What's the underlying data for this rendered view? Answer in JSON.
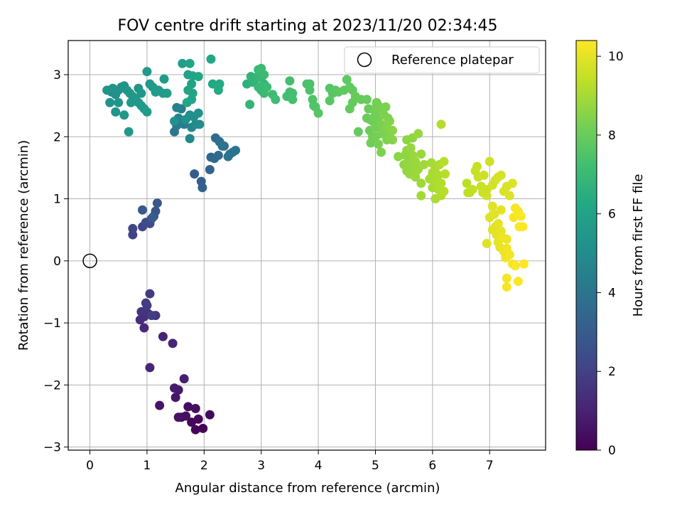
{
  "chart_data": {
    "type": "scatter",
    "title": "FOV centre drift starting at 2023/11/20 02:34:45",
    "xlabel": "Angular distance from reference (arcmin)",
    "ylabel": "Rotation from reference (arcmin)",
    "xlim": [
      -0.38,
      7.98
    ],
    "ylim": [
      -3.05,
      3.55
    ],
    "xticks": [
      0,
      1,
      2,
      3,
      4,
      5,
      6,
      7
    ],
    "yticks": [
      -3,
      -2,
      -1,
      0,
      1,
      2,
      3
    ],
    "grid": true,
    "legend": {
      "placement": "top-right",
      "entries": [
        "Reference platepar"
      ]
    },
    "reference_point": {
      "x": 0,
      "y": 0
    },
    "colorbar": {
      "label": "Hours from first FF file",
      "range": [
        0,
        10.4
      ],
      "ticks": [
        0,
        2,
        4,
        6,
        8,
        10
      ],
      "colormap": "viridis"
    },
    "points": [
      [
        1.85,
        -2.72,
        0.05
      ],
      [
        1.98,
        -2.7,
        0.1
      ],
      [
        1.78,
        -2.6,
        0.15
      ],
      [
        1.9,
        -2.55,
        0.2
      ],
      [
        2.1,
        -2.48,
        0.25
      ],
      [
        1.6,
        -2.52,
        0.3
      ],
      [
        1.72,
        -2.35,
        0.35
      ],
      [
        1.85,
        -2.38,
        0.4
      ],
      [
        1.68,
        -2.5,
        0.45
      ],
      [
        1.55,
        -2.52,
        0.5
      ],
      [
        1.22,
        -2.33,
        0.55
      ],
      [
        1.5,
        -2.2,
        0.6
      ],
      [
        1.55,
        -2.08,
        0.7
      ],
      [
        1.48,
        -2.05,
        0.8
      ],
      [
        1.65,
        -1.9,
        0.9
      ],
      [
        1.28,
        -1.22,
        1.0
      ],
      [
        1.45,
        -1.33,
        1.05
      ],
      [
        1.05,
        -1.72,
        1.1
      ],
      [
        0.95,
        -1.08,
        1.2
      ],
      [
        0.88,
        -0.95,
        1.3
      ],
      [
        0.95,
        -0.9,
        1.4
      ],
      [
        1.02,
        -0.85,
        1.5
      ],
      [
        1.15,
        -0.88,
        1.55
      ],
      [
        0.9,
        -0.82,
        1.6
      ],
      [
        1.0,
        -0.72,
        1.7
      ],
      [
        1.05,
        -0.53,
        1.8
      ],
      [
        0.98,
        -0.68,
        1.85
      ],
      [
        1.08,
        -0.88,
        1.9
      ],
      [
        0.75,
        0.42,
        2.0
      ],
      [
        0.75,
        0.52,
        2.1
      ],
      [
        0.92,
        0.55,
        2.2
      ],
      [
        0.98,
        0.62,
        2.3
      ],
      [
        1.05,
        0.6,
        2.4
      ],
      [
        1.08,
        0.68,
        2.5
      ],
      [
        1.12,
        0.72,
        2.6
      ],
      [
        1.15,
        0.8,
        2.7
      ],
      [
        1.18,
        0.93,
        2.8
      ],
      [
        0.92,
        0.82,
        2.9
      ],
      [
        1.1,
        0.7,
        3.0
      ],
      [
        1.83,
        1.4,
        3.0
      ],
      [
        1.95,
        1.28,
        3.1
      ],
      [
        1.97,
        1.18,
        3.2
      ],
      [
        2.1,
        1.47,
        3.3
      ],
      [
        2.12,
        1.67,
        3.4
      ],
      [
        2.18,
        1.65,
        3.5
      ],
      [
        2.25,
        1.7,
        3.6
      ],
      [
        2.35,
        1.85,
        3.7
      ],
      [
        2.45,
        1.72,
        3.8
      ],
      [
        2.5,
        1.75,
        3.9
      ],
      [
        2.55,
        1.78,
        4.0
      ],
      [
        2.2,
        1.98,
        3.7
      ],
      [
        2.27,
        1.92,
        3.8
      ],
      [
        2.32,
        1.85,
        3.9
      ],
      [
        2.42,
        1.68,
        4.0
      ],
      [
        1.48,
        2.08,
        4.1
      ],
      [
        1.52,
        2.18,
        4.2
      ],
      [
        1.6,
        2.45,
        4.3
      ],
      [
        1.65,
        2.2,
        4.4
      ],
      [
        1.55,
        2.3,
        4.5
      ],
      [
        1.52,
        2.47,
        4.6
      ],
      [
        1.78,
        2.15,
        4.7
      ],
      [
        1.75,
        1.97,
        4.8
      ],
      [
        1.85,
        2.2,
        4.9
      ],
      [
        1.82,
        2.32,
        5.0
      ],
      [
        1.92,
        2.2,
        5.0
      ],
      [
        1.75,
        2.35,
        5.1
      ],
      [
        1.68,
        2.28,
        5.2
      ],
      [
        1.9,
        2.38,
        5.2
      ],
      [
        1.48,
        2.25,
        5.2
      ],
      [
        0.38,
        2.72,
        5.0
      ],
      [
        0.45,
        2.68,
        5.1
      ],
      [
        0.5,
        2.75,
        5.2
      ],
      [
        0.55,
        2.8,
        5.3
      ],
      [
        0.6,
        2.82,
        5.35
      ],
      [
        0.65,
        2.75,
        5.4
      ],
      [
        0.7,
        2.7,
        5.45
      ],
      [
        0.75,
        2.65,
        5.5
      ],
      [
        0.8,
        2.6,
        5.55
      ],
      [
        0.85,
        2.55,
        5.6
      ],
      [
        0.9,
        2.5,
        5.6
      ],
      [
        0.95,
        2.45,
        5.65
      ],
      [
        1.0,
        2.4,
        5.7
      ],
      [
        0.85,
        2.78,
        5.4
      ],
      [
        0.9,
        2.7,
        5.45
      ],
      [
        1.05,
        2.85,
        5.5
      ],
      [
        1.1,
        2.8,
        5.55
      ],
      [
        1.2,
        2.75,
        5.6
      ],
      [
        1.28,
        2.7,
        5.65
      ],
      [
        1.15,
        2.72,
        5.7
      ],
      [
        0.35,
        2.55,
        5.3
      ],
      [
        0.5,
        2.55,
        5.35
      ],
      [
        0.45,
        2.4,
        5.4
      ],
      [
        0.6,
        2.35,
        5.45
      ],
      [
        0.68,
        2.08,
        5.5
      ],
      [
        0.72,
        2.55,
        5.5
      ],
      [
        0.78,
        2.62,
        5.55
      ],
      [
        1.0,
        3.05,
        5.6
      ],
      [
        1.3,
        2.93,
        5.7
      ],
      [
        1.35,
        2.7,
        5.75
      ],
      [
        0.3,
        2.75,
        5.3
      ],
      [
        0.4,
        2.78,
        5.3
      ],
      [
        1.62,
        3.18,
        5.9
      ],
      [
        1.72,
        3.0,
        5.95
      ],
      [
        1.8,
        2.98,
        6.0
      ],
      [
        1.78,
        2.85,
        6.0
      ],
      [
        1.72,
        2.75,
        6.05
      ],
      [
        1.8,
        2.7,
        6.1
      ],
      [
        1.78,
        2.6,
        6.1
      ],
      [
        1.7,
        2.55,
        6.15
      ],
      [
        1.9,
        2.97,
        6.2
      ],
      [
        2.12,
        3.25,
        6.2
      ],
      [
        2.15,
        2.85,
        6.25
      ],
      [
        2.25,
        2.82,
        6.3
      ],
      [
        2.27,
        2.85,
        6.35
      ],
      [
        2.25,
        2.75,
        6.35
      ],
      [
        1.75,
        3.18,
        6.1
      ],
      [
        2.75,
        2.85,
        6.6
      ],
      [
        2.82,
        2.97,
        6.7
      ],
      [
        2.85,
        2.88,
        6.75
      ],
      [
        2.9,
        2.93,
        6.8
      ],
      [
        2.95,
        2.98,
        6.85
      ],
      [
        3.0,
        2.95,
        6.9
      ],
      [
        3.05,
        2.85,
        6.9
      ],
      [
        3.0,
        2.75,
        6.95
      ],
      [
        2.95,
        3.08,
        7.0
      ],
      [
        3.0,
        3.1,
        7.05
      ],
      [
        3.05,
        3.0,
        7.05
      ],
      [
        3.1,
        2.8,
        7.1
      ],
      [
        3.2,
        2.68,
        7.1
      ],
      [
        3.25,
        2.6,
        7.15
      ],
      [
        2.95,
        2.8,
        6.95
      ],
      [
        2.8,
        2.52,
        6.8
      ],
      [
        3.05,
        2.7,
        7.0
      ],
      [
        3.45,
        2.65,
        7.2
      ],
      [
        3.5,
        2.72,
        7.25
      ],
      [
        3.55,
        2.7,
        7.3
      ],
      [
        3.55,
        2.6,
        7.3
      ],
      [
        3.5,
        2.9,
        7.25
      ],
      [
        3.8,
        2.85,
        7.4
      ],
      [
        3.85,
        2.75,
        7.45
      ],
      [
        3.9,
        2.6,
        7.5
      ],
      [
        3.92,
        2.5,
        7.5
      ],
      [
        3.95,
        2.48,
        7.55
      ],
      [
        4.0,
        2.38,
        7.6
      ],
      [
        3.85,
        2.85,
        7.4
      ],
      [
        4.2,
        2.78,
        7.6
      ],
      [
        4.25,
        2.7,
        7.65
      ],
      [
        4.3,
        2.75,
        7.7
      ],
      [
        4.2,
        2.58,
        7.7
      ],
      [
        4.35,
        2.72,
        7.75
      ],
      [
        4.45,
        2.75,
        7.8
      ],
      [
        4.5,
        2.92,
        7.8
      ],
      [
        4.55,
        2.8,
        7.85
      ],
      [
        4.6,
        2.75,
        7.85
      ],
      [
        4.55,
        2.45,
        7.9
      ],
      [
        4.6,
        2.55,
        7.9
      ],
      [
        4.65,
        2.65,
        7.95
      ],
      [
        4.75,
        2.6,
        7.95
      ],
      [
        4.85,
        2.6,
        8.0
      ],
      [
        4.7,
        2.08,
        7.9
      ],
      [
        4.85,
        2.3,
        8.0
      ],
      [
        4.88,
        2.45,
        8.05
      ],
      [
        4.9,
        2.1,
        8.05
      ],
      [
        4.92,
        1.9,
        8.1
      ],
      [
        4.95,
        2.25,
        8.1
      ],
      [
        4.95,
        2.0,
        8.15
      ],
      [
        5.0,
        2.15,
        8.15
      ],
      [
        5.0,
        2.4,
        8.2
      ],
      [
        5.02,
        2.55,
        8.2
      ],
      [
        5.05,
        2.5,
        8.25
      ],
      [
        5.05,
        2.3,
        8.25
      ],
      [
        5.1,
        2.05,
        8.3
      ],
      [
        5.1,
        2.2,
        8.3
      ],
      [
        5.15,
        2.35,
        8.35
      ],
      [
        5.15,
        2.1,
        8.35
      ],
      [
        5.1,
        1.75,
        8.4
      ],
      [
        5.2,
        1.95,
        8.4
      ],
      [
        5.2,
        2.15,
        8.45
      ],
      [
        5.25,
        2.0,
        8.45
      ],
      [
        5.25,
        2.25,
        8.5
      ],
      [
        5.3,
        1.95,
        8.5
      ],
      [
        5.3,
        2.1,
        8.55
      ],
      [
        5.0,
        2.0,
        8.2
      ],
      [
        4.9,
        2.28,
        8.05
      ],
      [
        5.12,
        2.45,
        8.3
      ],
      [
        5.18,
        2.48,
        8.35
      ],
      [
        5.22,
        2.3,
        8.4
      ],
      [
        5.05,
        1.88,
        8.25
      ],
      [
        5.02,
        2.52,
        8.2
      ],
      [
        4.98,
        2.32,
        8.15
      ],
      [
        5.4,
        1.68,
        8.6
      ],
      [
        5.5,
        1.55,
        8.65
      ],
      [
        5.55,
        1.78,
        8.7
      ],
      [
        5.55,
        1.45,
        8.7
      ],
      [
        5.6,
        1.62,
        8.75
      ],
      [
        5.6,
        1.4,
        8.75
      ],
      [
        5.65,
        1.7,
        8.8
      ],
      [
        5.65,
        1.5,
        8.8
      ],
      [
        5.7,
        1.35,
        8.85
      ],
      [
        5.7,
        1.6,
        8.85
      ],
      [
        5.75,
        1.48,
        8.9
      ],
      [
        5.8,
        1.25,
        8.9
      ],
      [
        5.55,
        1.95,
        8.6
      ],
      [
        5.65,
        1.98,
        8.65
      ],
      [
        5.8,
        1.05,
        8.95
      ],
      [
        5.52,
        1.7,
        8.65
      ],
      [
        5.58,
        1.55,
        8.7
      ],
      [
        5.62,
        1.82,
        8.75
      ],
      [
        5.68,
        1.58,
        8.8
      ],
      [
        5.72,
        1.45,
        8.85
      ],
      [
        5.85,
        1.55,
        8.9
      ],
      [
        5.75,
        2.05,
        8.75
      ],
      [
        5.8,
        1.72,
        8.8
      ],
      [
        5.95,
        1.32,
        9.0
      ],
      [
        6.0,
        1.18,
        9.0
      ],
      [
        6.0,
        1.42,
        9.05
      ],
      [
        6.05,
        1.5,
        9.05
      ],
      [
        6.05,
        1.28,
        9.1
      ],
      [
        6.1,
        1.38,
        9.1
      ],
      [
        6.1,
        1.15,
        9.15
      ],
      [
        6.12,
        1.55,
        9.15
      ],
      [
        6.15,
        1.25,
        9.2
      ],
      [
        6.15,
        1.05,
        9.2
      ],
      [
        6.2,
        1.6,
        9.25
      ],
      [
        6.2,
        1.12,
        9.25
      ],
      [
        6.22,
        1.4,
        9.3
      ],
      [
        5.98,
        1.58,
        9.0
      ],
      [
        6.05,
        1.0,
        9.1
      ],
      [
        6.15,
        2.2,
        9.2
      ],
      [
        6.6,
        1.25,
        9.35
      ],
      [
        6.65,
        1.1,
        9.4
      ],
      [
        6.7,
        1.15,
        9.45
      ],
      [
        6.75,
        1.45,
        9.5
      ],
      [
        6.78,
        1.52,
        9.5
      ],
      [
        6.8,
        1.35,
        9.55
      ],
      [
        6.85,
        1.2,
        9.55
      ],
      [
        6.88,
        1.1,
        9.6
      ],
      [
        6.9,
        1.38,
        9.6
      ],
      [
        6.95,
        1.05,
        9.65
      ],
      [
        7.0,
        1.6,
        9.65
      ],
      [
        7.05,
        1.22,
        9.7
      ],
      [
        7.1,
        1.3,
        9.7
      ],
      [
        7.15,
        1.35,
        9.75
      ],
      [
        7.2,
        1.38,
        9.75
      ],
      [
        7.25,
        1.12,
        9.8
      ],
      [
        7.3,
        1.2,
        9.8
      ],
      [
        7.35,
        1.05,
        9.85
      ],
      [
        7.4,
        1.25,
        9.85
      ],
      [
        6.95,
        1.15,
        9.6
      ],
      [
        6.62,
        1.1,
        9.4
      ],
      [
        7.0,
        0.7,
        9.9
      ],
      [
        7.05,
        0.88,
        9.9
      ],
      [
        7.08,
        0.75,
        9.95
      ],
      [
        7.1,
        0.55,
        9.95
      ],
      [
        7.12,
        0.42,
        10.0
      ],
      [
        7.15,
        0.3,
        10.0
      ],
      [
        7.18,
        0.22,
        10.05
      ],
      [
        7.2,
        0.48,
        10.05
      ],
      [
        7.22,
        0.38,
        10.1
      ],
      [
        7.25,
        0.15,
        10.1
      ],
      [
        7.28,
        0.05,
        10.15
      ],
      [
        7.3,
        0.35,
        10.15
      ],
      [
        7.3,
        0.2,
        10.2
      ],
      [
        7.35,
        0.1,
        10.2
      ],
      [
        7.4,
        -0.05,
        10.25
      ],
      [
        7.42,
        0.7,
        10.25
      ],
      [
        7.45,
        0.85,
        10.3
      ],
      [
        7.5,
        0.8,
        10.3
      ],
      [
        7.52,
        0.55,
        10.35
      ],
      [
        7.55,
        0.72,
        10.35
      ],
      [
        7.58,
        0.55,
        10.4
      ],
      [
        7.45,
        -0.08,
        10.35
      ],
      [
        7.6,
        -0.05,
        10.4
      ],
      [
        7.3,
        -0.28,
        10.25
      ],
      [
        7.3,
        -0.42,
        10.3
      ],
      [
        7.5,
        -0.33,
        10.35
      ],
      [
        7.2,
        0.82,
        10.0
      ],
      [
        6.95,
        0.28,
        9.9
      ],
      [
        7.05,
        0.5,
        9.95
      ],
      [
        7.15,
        0.6,
        10.0
      ]
    ]
  }
}
